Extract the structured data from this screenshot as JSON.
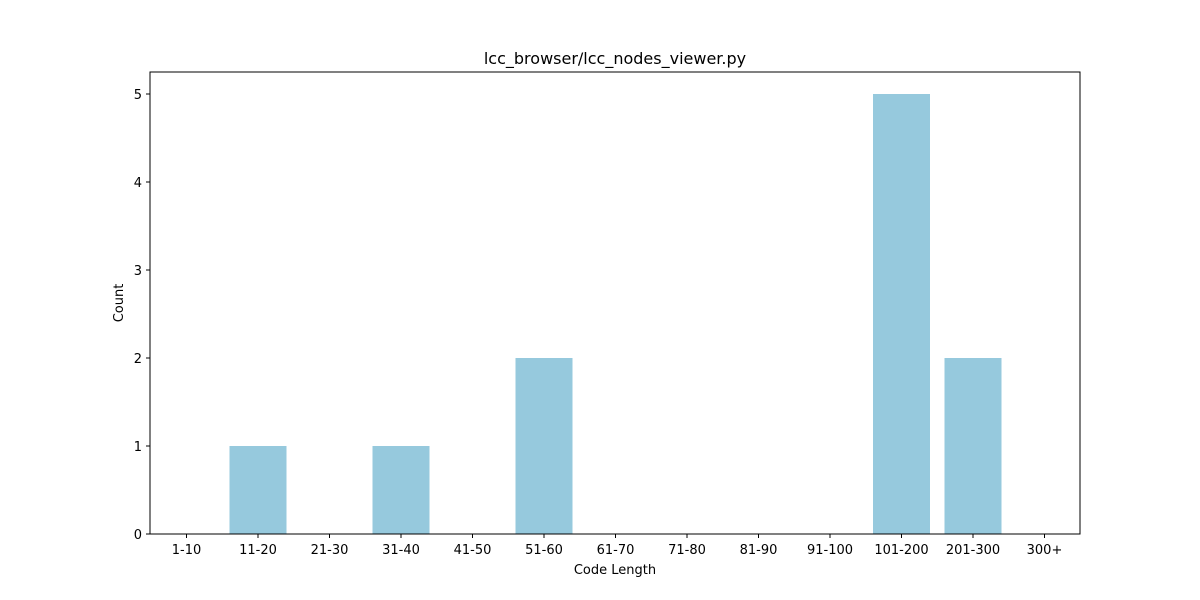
{
  "chart_data": {
    "type": "bar",
    "title": "lcc_browser/lcc_nodes_viewer.py",
    "xlabel": "Code Length",
    "ylabel": "Count",
    "categories": [
      "1-10",
      "11-20",
      "21-30",
      "31-40",
      "41-50",
      "51-60",
      "61-70",
      "71-80",
      "81-90",
      "91-100",
      "101-200",
      "201-300",
      "300+"
    ],
    "values": [
      0,
      1,
      0,
      1,
      0,
      2,
      0,
      0,
      0,
      0,
      5,
      2,
      0
    ],
    "ylim": [
      0,
      5.25
    ],
    "yticks": [
      0,
      1,
      2,
      3,
      4,
      5
    ],
    "grid": false,
    "legend": "none",
    "bar_color": "#96c9dd"
  }
}
